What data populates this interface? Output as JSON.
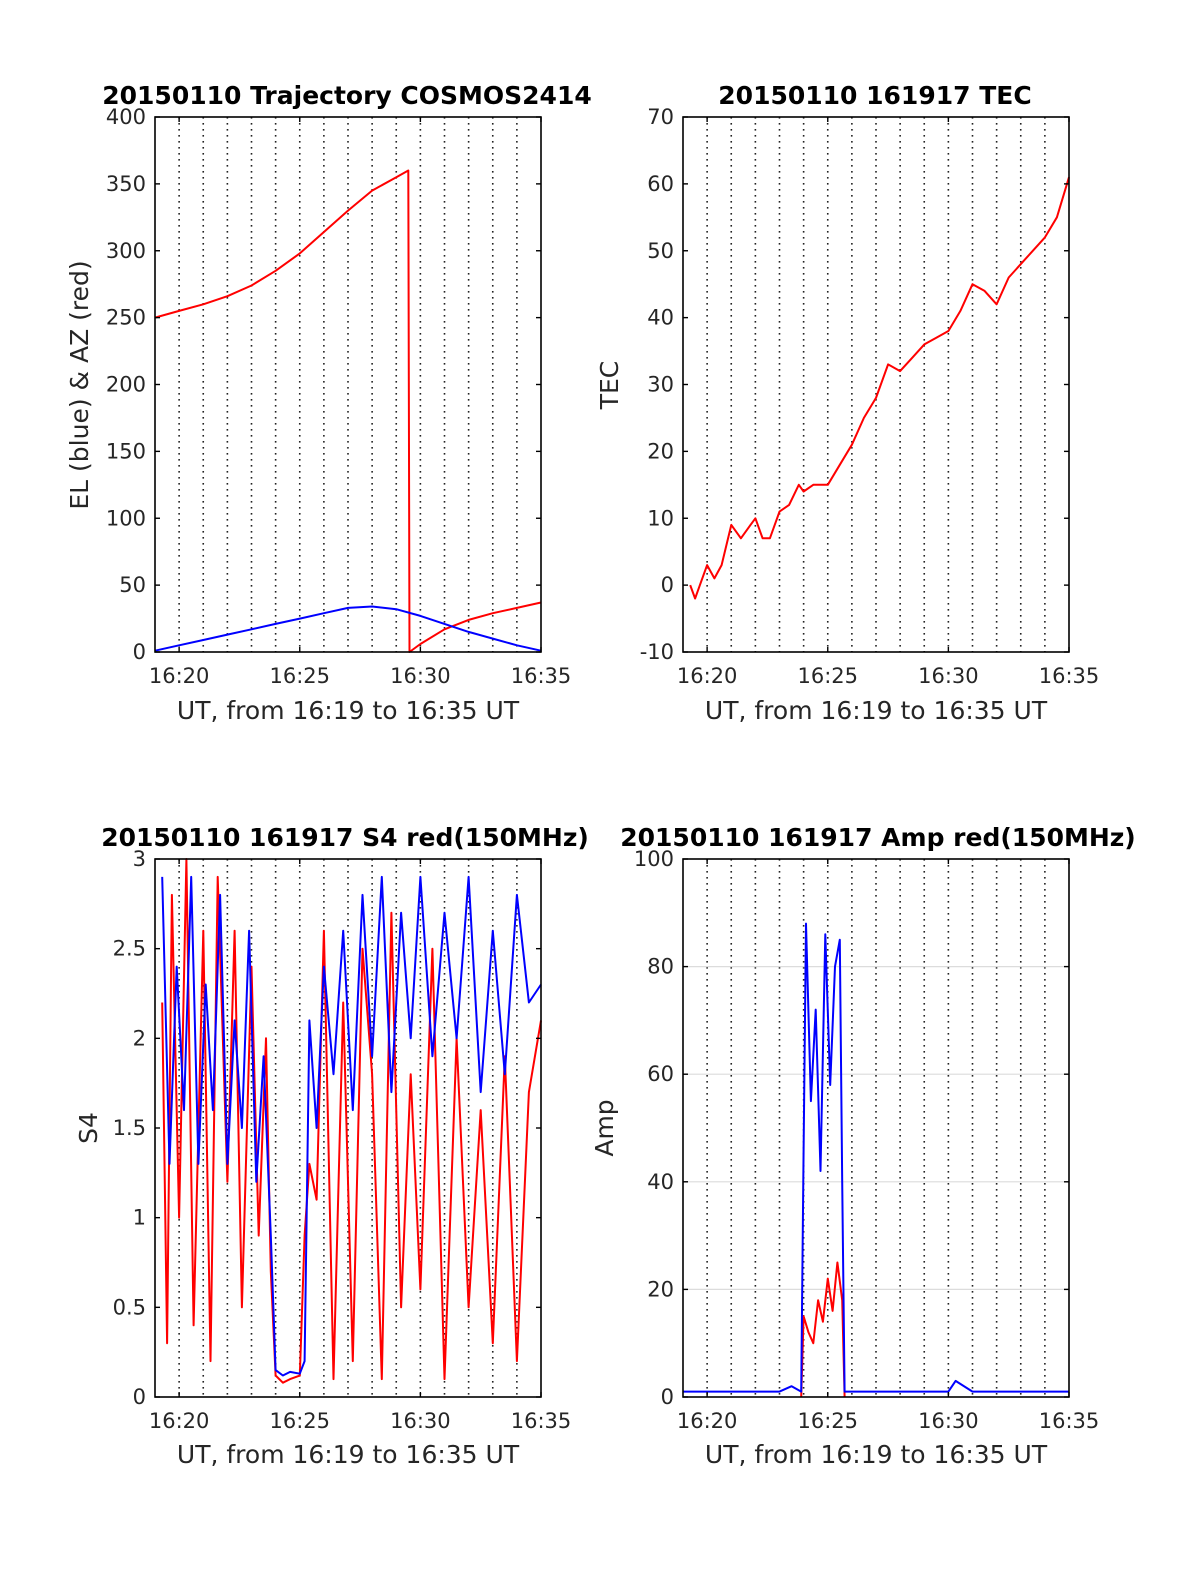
{
  "figure": {
    "background": "#ffffff",
    "series_colors": {
      "red": "#ff0000",
      "blue": "#0000ff"
    }
  },
  "chart_data": [
    {
      "id": "traj",
      "type": "line",
      "title": "20150110 Trajectory COSMOS2414",
      "xlabel": "UT, from 16:19 to 16:35 UT",
      "ylabel": "EL (blue) & AZ (red)",
      "xlim": [
        "16:19",
        "16:35"
      ],
      "ylim": [
        0,
        400
      ],
      "xticks": [
        "16:20",
        "16:25",
        "16:30",
        "16:35"
      ],
      "yticks": [
        "0",
        "50",
        "100",
        "150",
        "200",
        "250",
        "300",
        "350",
        "400"
      ],
      "grid": "x dotted, every 1 min",
      "series": [
        {
          "color": "#ff0000",
          "x": [
            "16:19",
            "16:20",
            "16:21",
            "16:22",
            "16:23",
            "16:24",
            "16:25",
            "16:26",
            "16:27",
            "16:28",
            "16:29",
            "16:29.5",
            "16:29.55",
            "16:30",
            "16:31",
            "16:32",
            "16:33",
            "16:34",
            "16:35"
          ],
          "y": [
            250,
            255,
            260,
            266,
            274,
            285,
            298,
            314,
            330,
            345,
            355,
            360,
            0,
            6,
            17,
            24,
            29,
            33,
            37
          ]
        },
        {
          "color": "#0000ff",
          "x": [
            "16:19",
            "16:20",
            "16:21",
            "16:22",
            "16:23",
            "16:24",
            "16:25",
            "16:26",
            "16:27",
            "16:28",
            "16:29",
            "16:30",
            "16:31",
            "16:32",
            "16:33",
            "16:34",
            "16:35"
          ],
          "y": [
            1,
            5,
            9,
            13,
            17,
            21,
            25,
            29,
            33,
            34,
            32,
            27,
            21,
            15,
            10,
            5,
            1
          ]
        }
      ]
    },
    {
      "id": "tec",
      "type": "line",
      "title": "20150110 161917 TEC",
      "xlabel": "UT, from 16:19 to 16:35 UT",
      "ylabel": "TEC",
      "xlim": [
        "16:19",
        "16:35"
      ],
      "ylim": [
        -10,
        70
      ],
      "xticks": [
        "16:20",
        "16:25",
        "16:30",
        "16:35"
      ],
      "yticks": [
        "-10",
        "0",
        "10",
        "20",
        "30",
        "40",
        "50",
        "60",
        "70"
      ],
      "grid": "x dotted, every 1 min",
      "series": [
        {
          "color": "#ff0000",
          "x": [
            "16:19.3",
            "16:19.5",
            "16:19.7",
            "16:20",
            "16:20.3",
            "16:20.6",
            "16:21",
            "16:21.4",
            "16:21.8",
            "16:22",
            "16:22.3",
            "16:22.6",
            "16:23",
            "16:23.4",
            "16:23.8",
            "16:24",
            "16:24.4",
            "16:24.8",
            "16:25",
            "16:25.5",
            "16:26",
            "16:26.5",
            "16:27",
            "16:27.5",
            "16:28",
            "16:28.5",
            "16:29",
            "16:29.5",
            "16:30",
            "16:30.5",
            "16:31",
            "16:31.5",
            "16:32",
            "16:32.5",
            "16:33",
            "16:33.5",
            "16:34",
            "16:34.5",
            "16:35"
          ],
          "y": [
            0,
            -2,
            0,
            3,
            1,
            3,
            9,
            7,
            9,
            10,
            7,
            7,
            11,
            12,
            15,
            14,
            15,
            15,
            15,
            18,
            21,
            25,
            28,
            33,
            32,
            34,
            36,
            37,
            38,
            41,
            45,
            44,
            42,
            46,
            48,
            50,
            52,
            55,
            61
          ]
        }
      ]
    },
    {
      "id": "s4",
      "type": "line",
      "title": "20150110 161917 S4 red(150MHz)",
      "xlabel": "UT, from 16:19 to 16:35 UT",
      "ylabel": "S4",
      "xlim": [
        "16:19",
        "16:35"
      ],
      "ylim": [
        0,
        3
      ],
      "xticks": [
        "16:20",
        "16:25",
        "16:30",
        "16:35"
      ],
      "yticks": [
        "0",
        "0.5",
        "1",
        "1.5",
        "2",
        "2.5",
        "3"
      ],
      "grid": "x dotted, every 1 min",
      "series": [
        {
          "color": "#ff0000",
          "x": [
            "16:19.3",
            "16:19.5",
            "16:19.7",
            "16:20",
            "16:20.3",
            "16:20.6",
            "16:21",
            "16:21.3",
            "16:21.6",
            "16:22",
            "16:22.3",
            "16:22.6",
            "16:23",
            "16:23.3",
            "16:23.6",
            "16:23.8",
            "16:24",
            "16:24.3",
            "16:24.6",
            "16:25",
            "16:25.2",
            "16:25.4",
            "16:25.7",
            "16:26",
            "16:26.4",
            "16:26.8",
            "16:27.2",
            "16:27.6",
            "16:28",
            "16:28.4",
            "16:28.8",
            "16:29.2",
            "16:29.6",
            "16:30",
            "16:30.5",
            "16:31",
            "16:31.5",
            "16:32",
            "16:32.5",
            "16:33",
            "16:33.5",
            "16:34",
            "16:34.5",
            "16:35"
          ],
          "y": [
            2.2,
            0.3,
            2.8,
            1.0,
            3.0,
            0.4,
            2.6,
            0.2,
            2.9,
            1.2,
            2.6,
            0.5,
            2.4,
            0.9,
            2.0,
            0.7,
            0.12,
            0.08,
            0.1,
            0.12,
            0.9,
            1.3,
            1.1,
            2.6,
            0.1,
            2.2,
            0.2,
            2.5,
            1.8,
            0.1,
            2.7,
            0.5,
            1.8,
            0.6,
            2.5,
            0.1,
            2.0,
            0.5,
            1.6,
            0.3,
            1.9,
            0.2,
            1.7,
            2.1
          ]
        },
        {
          "color": "#0000ff",
          "x": [
            "16:19.3",
            "16:19.6",
            "16:19.9",
            "16:20.2",
            "16:20.5",
            "16:20.8",
            "16:21.1",
            "16:21.4",
            "16:21.7",
            "16:22",
            "16:22.3",
            "16:22.6",
            "16:22.9",
            "16:23.2",
            "16:23.5",
            "16:23.8",
            "16:24",
            "16:24.3",
            "16:24.6",
            "16:25",
            "16:25.2",
            "16:25.4",
            "16:25.7",
            "16:26",
            "16:26.4",
            "16:26.8",
            "16:27.2",
            "16:27.6",
            "16:28",
            "16:28.4",
            "16:28.8",
            "16:29.2",
            "16:29.6",
            "16:30",
            "16:30.5",
            "16:31",
            "16:31.5",
            "16:32",
            "16:32.5",
            "16:33",
            "16:33.5",
            "16:34",
            "16:34.5",
            "16:35"
          ],
          "y": [
            2.9,
            1.3,
            2.4,
            1.6,
            2.9,
            1.3,
            2.3,
            1.6,
            2.8,
            1.3,
            2.1,
            1.5,
            2.6,
            1.2,
            1.9,
            0.9,
            0.15,
            0.12,
            0.14,
            0.13,
            0.2,
            2.1,
            1.5,
            2.4,
            1.8,
            2.6,
            1.6,
            2.8,
            1.9,
            2.9,
            1.7,
            2.7,
            2.0,
            2.9,
            1.9,
            2.7,
            2.0,
            2.9,
            1.7,
            2.6,
            1.8,
            2.8,
            2.2,
            2.3
          ]
        }
      ]
    },
    {
      "id": "amp",
      "type": "line",
      "title": "20150110 161917 Amp red(150MHz)",
      "xlabel": "UT, from 16:19 to 16:35 UT",
      "ylabel": "Amp",
      "xlim": [
        "16:19",
        "16:35"
      ],
      "ylim": [
        0,
        100
      ],
      "xticks": [
        "16:20",
        "16:25",
        "16:30",
        "16:35"
      ],
      "yticks": [
        "0",
        "20",
        "40",
        "60",
        "80",
        "100"
      ],
      "grid": "x dotted every 1 min, y solid",
      "series": [
        {
          "color": "#ff0000",
          "x": [
            "16:23.9",
            "16:24",
            "16:24.2",
            "16:24.4",
            "16:24.6",
            "16:24.8",
            "16:25",
            "16:25.2",
            "16:25.4",
            "16:25.6",
            "16:25.7"
          ],
          "y": [
            0,
            15,
            12,
            10,
            18,
            14,
            22,
            16,
            25,
            18,
            0
          ]
        },
        {
          "color": "#0000ff",
          "x": [
            "16:19",
            "16:20",
            "16:21",
            "16:22",
            "16:23",
            "16:23.5",
            "16:23.9",
            "16:24",
            "16:24.1",
            "16:24.3",
            "16:24.5",
            "16:24.7",
            "16:24.9",
            "16:25.1",
            "16:25.3",
            "16:25.5",
            "16:25.6",
            "16:25.7",
            "16:26",
            "16:27",
            "16:28",
            "16:29",
            "16:30",
            "16:30.3",
            "16:31",
            "16:32",
            "16:33",
            "16:34",
            "16:35"
          ],
          "y": [
            1,
            1,
            1,
            1,
            1,
            2,
            1,
            46,
            88,
            55,
            72,
            42,
            86,
            58,
            80,
            85,
            40,
            1,
            1,
            1,
            1,
            1,
            1,
            3,
            1,
            1,
            1,
            1,
            1
          ]
        }
      ]
    }
  ]
}
